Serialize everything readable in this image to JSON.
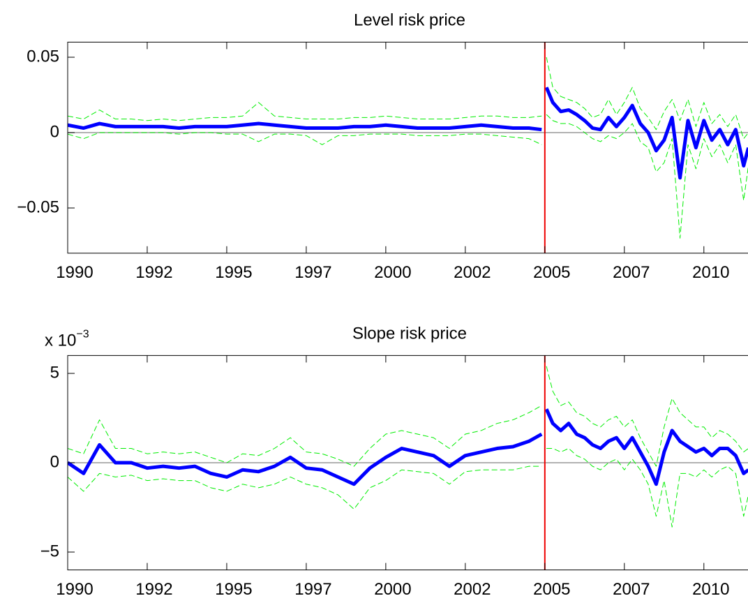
{
  "chart_data": [
    {
      "type": "line",
      "title": "Level risk price",
      "x": [
        1990,
        1990.5,
        1991,
        1991.5,
        1992,
        1992.5,
        1993,
        1993.5,
        1994,
        1994.5,
        1995,
        1995.5,
        1996,
        1996.5,
        1997,
        1997.5,
        1998,
        1998.5,
        1999,
        1999.5,
        2000,
        2000.5,
        2001,
        2001.5,
        2002,
        2002.5,
        2003,
        2003.5,
        2004,
        2004.5,
        2004.9,
        2005,
        2005.05,
        2005.25,
        2005.5,
        2005.75,
        2006,
        2006.25,
        2006.5,
        2006.75,
        2007,
        2007.25,
        2007.5,
        2007.75,
        2008,
        2008.25,
        2008.5,
        2008.75,
        2009,
        2009.25,
        2009.5,
        2009.75,
        2010,
        2010.25,
        2010.5,
        2010.75,
        2011,
        2011.25,
        2011.4
      ],
      "series": [
        {
          "color": "#00ee00",
          "dashed": true,
          "values": [
            0.011,
            0.009,
            0.015,
            0.009,
            0.009,
            0.008,
            0.009,
            0.008,
            0.009,
            0.01,
            0.01,
            0.011,
            0.02,
            0.011,
            0.01,
            0.009,
            0.009,
            0.009,
            0.01,
            0.01,
            0.011,
            0.01,
            0.009,
            0.009,
            0.009,
            0.01,
            0.011,
            0.011,
            0.01,
            0.01,
            0.011,
            null,
            0.05,
            0.03,
            0.024,
            0.022,
            0.02,
            0.016,
            0.01,
            0.012,
            0.022,
            0.012,
            0.02,
            0.03,
            0.016,
            0.01,
            0.002,
            0.014,
            0.022,
            0.008,
            0.022,
            0.004,
            0.02,
            0.006,
            0.012,
            0.004,
            0.012,
            -0.004,
            0.0
          ]
        },
        {
          "color": "#00ee00",
          "dashed": true,
          "values": [
            -0.001,
            -0.004,
            0.0,
            0.0,
            0.0,
            0.0,
            0.0,
            -0.001,
            0.0,
            0.0,
            -0.001,
            -0.001,
            -0.006,
            -0.001,
            -0.001,
            -0.002,
            -0.008,
            -0.002,
            -0.002,
            -0.001,
            -0.001,
            -0.001,
            -0.002,
            -0.002,
            -0.002,
            -0.001,
            -0.001,
            -0.002,
            -0.003,
            -0.004,
            -0.008,
            null,
            0.012,
            0.008,
            0.006,
            0.006,
            0.004,
            0.0,
            -0.004,
            -0.006,
            -0.002,
            -0.004,
            0.0,
            0.006,
            -0.006,
            -0.01,
            -0.026,
            -0.02,
            -0.004,
            -0.07,
            -0.008,
            -0.024,
            -0.004,
            -0.016,
            -0.008,
            -0.02,
            -0.008,
            -0.045,
            -0.022
          ]
        },
        {
          "color": "#0000ff",
          "dashed": false,
          "values": [
            0.005,
            0.003,
            0.006,
            0.004,
            0.004,
            0.004,
            0.004,
            0.003,
            0.004,
            0.004,
            0.004,
            0.005,
            0.006,
            0.005,
            0.004,
            0.003,
            0.003,
            0.003,
            0.004,
            0.004,
            0.005,
            0.004,
            0.003,
            0.003,
            0.003,
            0.004,
            0.005,
            0.004,
            0.003,
            0.003,
            0.002,
            null,
            0.03,
            0.02,
            0.014,
            0.015,
            0.012,
            0.008,
            0.003,
            0.002,
            0.01,
            0.004,
            0.01,
            0.018,
            0.006,
            0.0,
            -0.012,
            -0.005,
            0.01,
            -0.03,
            0.008,
            -0.01,
            0.008,
            -0.005,
            0.002,
            -0.008,
            0.002,
            -0.022,
            -0.01
          ]
        }
      ],
      "xlim": [
        1990,
        2011.4
      ],
      "xticks": [
        1990,
        {
          "value": 1992.5,
          "label": "1992"
        },
        1995,
        {
          "value": 1997.5,
          "label": "1997"
        },
        2000,
        {
          "value": 2002.5,
          "label": "2002"
        },
        2005,
        {
          "value": 2007.5,
          "label": "2007"
        },
        2010
      ],
      "ylim": [
        -0.08,
        0.06
      ],
      "yticks": [
        {
          "value": -0.05,
          "label": "−0.05"
        },
        0,
        0.05
      ],
      "hline": 0,
      "hline_color": "#999999",
      "vline": 2005,
      "vline_color": "#ee0000"
    },
    {
      "type": "line",
      "title": "Slope risk price",
      "y_exponent_base": "x 10",
      "y_exponent": "−3",
      "x": [
        1990,
        1990.5,
        1991,
        1991.5,
        1992,
        1992.5,
        1993,
        1993.5,
        1994,
        1994.5,
        1995,
        1995.5,
        1996,
        1996.5,
        1997,
        1997.5,
        1998,
        1998.5,
        1999,
        1999.5,
        2000,
        2000.5,
        2001,
        2001.5,
        2002,
        2002.5,
        2003,
        2003.5,
        2004,
        2004.5,
        2004.9,
        2005,
        2005.05,
        2005.25,
        2005.5,
        2005.75,
        2006,
        2006.25,
        2006.5,
        2006.75,
        2007,
        2007.25,
        2007.5,
        2007.75,
        2008,
        2008.25,
        2008.5,
        2008.75,
        2009,
        2009.25,
        2009.5,
        2009.75,
        2010,
        2010.25,
        2010.5,
        2010.75,
        2011,
        2011.25,
        2011.4
      ],
      "series": [
        {
          "color": "#00ee00",
          "dashed": true,
          "values": [
            0.8,
            0.5,
            2.4,
            0.8,
            0.8,
            0.5,
            0.6,
            0.5,
            0.6,
            0.3,
            0.0,
            0.5,
            0.4,
            0.8,
            1.4,
            0.6,
            0.5,
            0.2,
            -0.2,
            0.8,
            1.6,
            1.8,
            1.6,
            1.4,
            0.8,
            1.6,
            1.8,
            2.2,
            2.4,
            2.8,
            3.2,
            null,
            5.4,
            4.0,
            3.2,
            3.4,
            2.8,
            2.6,
            2.2,
            2.0,
            2.4,
            2.6,
            2.0,
            2.4,
            1.4,
            0.6,
            -0.2,
            2.0,
            3.6,
            2.8,
            2.4,
            2.0,
            2.0,
            1.4,
            1.8,
            1.6,
            1.2,
            0.6,
            0.8
          ]
        },
        {
          "color": "#00ee00",
          "dashed": true,
          "values": [
            -0.8,
            -1.6,
            -0.6,
            -0.8,
            -0.7,
            -1.0,
            -0.9,
            -1.0,
            -1.0,
            -1.4,
            -1.6,
            -1.2,
            -1.4,
            -1.2,
            -0.8,
            -1.2,
            -1.4,
            -1.8,
            -2.6,
            -1.4,
            -1.0,
            -0.4,
            -0.5,
            -0.6,
            -1.2,
            -0.5,
            -0.4,
            -0.4,
            -0.4,
            -0.2,
            -0.2,
            null,
            0.8,
            0.8,
            0.6,
            0.8,
            0.4,
            0.2,
            -0.2,
            -0.4,
            0.0,
            0.2,
            -0.4,
            0.2,
            -0.4,
            -1.2,
            -3.0,
            -1.0,
            -3.6,
            -0.6,
            -0.6,
            -0.8,
            -0.4,
            -0.8,
            -0.4,
            -0.2,
            -0.6,
            -3.0,
            -1.8
          ]
        },
        {
          "color": "#0000ff",
          "dashed": false,
          "values": [
            0.0,
            -0.6,
            1.0,
            0.0,
            0.0,
            -0.3,
            -0.2,
            -0.3,
            -0.2,
            -0.6,
            -0.8,
            -0.4,
            -0.5,
            -0.2,
            0.3,
            -0.3,
            -0.4,
            -0.8,
            -1.2,
            -0.3,
            0.3,
            0.8,
            0.6,
            0.4,
            -0.2,
            0.4,
            0.6,
            0.8,
            0.9,
            1.2,
            1.6,
            null,
            3.0,
            2.2,
            1.8,
            2.2,
            1.6,
            1.4,
            1.0,
            0.8,
            1.2,
            1.4,
            0.8,
            1.4,
            0.6,
            -0.2,
            -1.2,
            0.6,
            1.8,
            1.2,
            0.9,
            0.6,
            0.8,
            0.4,
            0.8,
            0.8,
            0.4,
            -0.6,
            -0.4
          ]
        }
      ],
      "xlim": [
        1990,
        2011.4
      ],
      "xticks": [
        1990,
        {
          "value": 1992.5,
          "label": "1992"
        },
        1995,
        {
          "value": 1997.5,
          "label": "1997"
        },
        2000,
        {
          "value": 2002.5,
          "label": "2002"
        },
        2005,
        {
          "value": 2007.5,
          "label": "2007"
        },
        2010
      ],
      "ylim": [
        -6,
        6
      ],
      "yticks": [
        {
          "value": -5,
          "label": "−5"
        },
        0,
        5
      ],
      "hline": 0,
      "hline_color": "#999999",
      "vline": 2005,
      "vline_color": "#ee0000"
    }
  ]
}
